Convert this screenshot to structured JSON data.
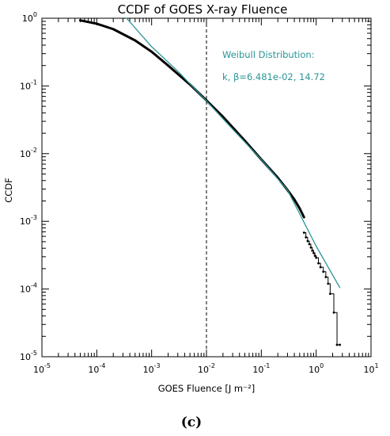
{
  "chart_data": {
    "type": "line",
    "title": "CCDF of GOES X-ray Fluence",
    "xlabel": "GOES Fluence [J m⁻²]",
    "ylabel": "CCDF",
    "xscale": "log",
    "yscale": "log",
    "xlim": [
      1e-05,
      10
    ],
    "ylim": [
      1e-05,
      1
    ],
    "x_ticks": [
      {
        "value": 1e-05,
        "base": "10",
        "exp": "-5"
      },
      {
        "value": 0.0001,
        "base": "10",
        "exp": "-4"
      },
      {
        "value": 0.001,
        "base": "10",
        "exp": "-3"
      },
      {
        "value": 0.01,
        "base": "10",
        "exp": "-2"
      },
      {
        "value": 0.1,
        "base": "10",
        "exp": "-1"
      },
      {
        "value": 1,
        "base": "10",
        "exp": "0"
      },
      {
        "value": 10,
        "base": "10",
        "exp": "1"
      }
    ],
    "y_ticks": [
      {
        "value": 1,
        "base": "10",
        "exp": "0"
      },
      {
        "value": 0.1,
        "base": "10",
        "exp": "-1"
      },
      {
        "value": 0.01,
        "base": "10",
        "exp": "-2"
      },
      {
        "value": 0.001,
        "base": "10",
        "exp": "-3"
      },
      {
        "value": 0.0001,
        "base": "10",
        "exp": "-4"
      },
      {
        "value": 1e-05,
        "base": "10",
        "exp": "-5"
      }
    ],
    "threshold_line": {
      "x": 0.01,
      "style": "dashed",
      "color": "#000000"
    },
    "series": [
      {
        "color": "#000000",
        "style": "thick-line",
        "x": [
          5e-05,
          0.0001,
          0.0002,
          0.0005,
          0.001,
          0.002,
          0.005,
          0.01,
          0.02,
          0.05,
          0.1,
          0.2,
          0.3,
          0.4,
          0.5,
          0.6
        ],
        "y": [
          0.93,
          0.83,
          0.69,
          0.47,
          0.32,
          0.2,
          0.105,
          0.061,
          0.035,
          0.0155,
          0.0082,
          0.0044,
          0.0029,
          0.0021,
          0.00155,
          0.00115
        ]
      },
      {
        "color": "#000000",
        "style": "step-points",
        "x": [
          0.6,
          0.65,
          0.7,
          0.75,
          0.8,
          0.85,
          0.9,
          0.95,
          1.0,
          1.1,
          1.2,
          1.35,
          1.5,
          1.65,
          1.8,
          2.1,
          2.4,
          2.7
        ],
        "y": [
          0.00068,
          0.00058,
          0.00051,
          0.00046,
          0.00041,
          0.00037,
          0.00034,
          0.00031,
          0.00029,
          0.00024,
          0.00021,
          0.00018,
          0.00015,
          0.00012,
          8.5e-05,
          4.5e-05,
          1.5e-05,
          1.5e-05
        ]
      },
      {
        "color": "#2a9595",
        "style": "thin-line",
        "name": "Weibull Distribution",
        "x": [
          0.00035,
          0.001,
          0.003,
          0.01,
          0.03,
          0.1,
          0.3,
          1.0,
          2.7
        ],
        "y": [
          1.0,
          0.38,
          0.165,
          0.06,
          0.023,
          0.0082,
          0.0029,
          0.00043,
          0.000105
        ]
      }
    ],
    "annotations": [
      {
        "text": "Weibull Distribution:"
      },
      {
        "text": "k, β=6.481e-02, 14.72"
      }
    ],
    "panel_label": "(c)",
    "grid": false,
    "colors": {
      "data": "#000000",
      "fit": "#2a9595"
    }
  }
}
